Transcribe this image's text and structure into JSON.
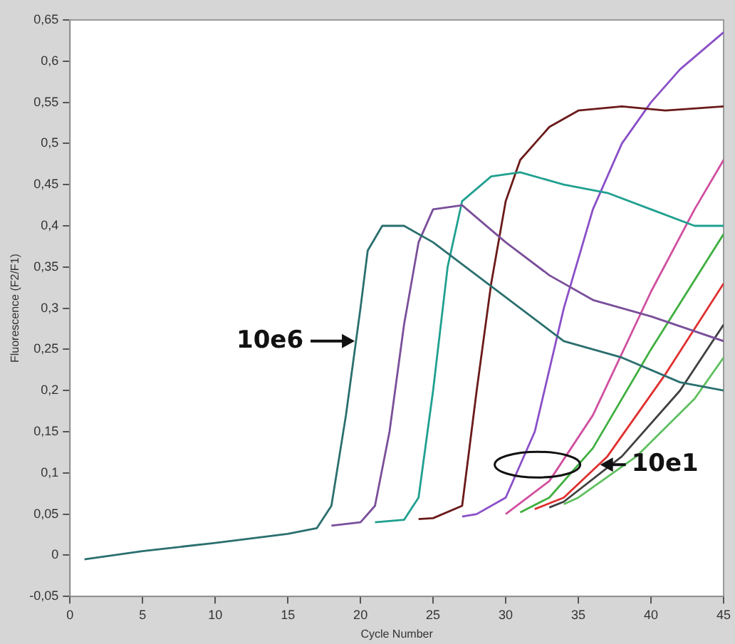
{
  "chart_data": {
    "type": "line",
    "xlabel": "Cycle Number",
    "ylabel": "Fluorescence (F2/F1)",
    "marker": "none",
    "legend": false,
    "grid": false,
    "xlim": [
      0,
      45
    ],
    "xticks": [
      0,
      5,
      10,
      15,
      20,
      25,
      30,
      35,
      40,
      45
    ],
    "ylim": [
      -0.05,
      0.65
    ],
    "yticks": [
      {
        "value": -0.05,
        "label": "-0,05"
      },
      0,
      {
        "value": 0.05,
        "label": "0,05"
      },
      {
        "value": 0.1,
        "label": "0,1"
      },
      {
        "value": 0.15,
        "label": "0,15"
      },
      {
        "value": 0.2,
        "label": "0,2"
      },
      {
        "value": 0.25,
        "label": "0,25"
      },
      {
        "value": 0.3,
        "label": "0,3"
      },
      {
        "value": 0.35,
        "label": "0,35"
      },
      {
        "value": 0.4,
        "label": "0,4"
      },
      {
        "value": 0.45,
        "label": "0,45"
      },
      {
        "value": 0.5,
        "label": "0,5"
      },
      {
        "value": 0.55,
        "label": "0,55"
      },
      {
        "value": 0.6,
        "label": "0,6"
      },
      {
        "value": 0.65,
        "label": "0,65"
      }
    ],
    "annotations": [
      {
        "text": "10e6",
        "x": 19.8,
        "y": 0.26
      },
      {
        "text": "10e1",
        "x": 36.5,
        "y": 0.11
      }
    ],
    "series": [
      {
        "color": "#2b6f6f",
        "x": [
          1,
          5,
          10,
          15,
          17,
          18,
          19,
          20,
          20.5,
          21.5,
          23,
          25,
          28,
          31,
          34,
          38,
          42,
          45
        ],
        "values": [
          -0.005,
          0.005,
          0.015,
          0.026,
          0.033,
          0.06,
          0.17,
          0.3,
          0.37,
          0.4,
          0.4,
          0.38,
          0.34,
          0.3,
          0.26,
          0.24,
          0.21,
          0.2
        ]
      },
      {
        "color": "#7a4f9a",
        "x": [
          18,
          20,
          21,
          22,
          23,
          24,
          25,
          27,
          30,
          33,
          36,
          40,
          45
        ],
        "values": [
          0.036,
          0.04,
          0.06,
          0.15,
          0.28,
          0.38,
          0.42,
          0.425,
          0.38,
          0.34,
          0.31,
          0.29,
          0.26
        ]
      },
      {
        "color": "#20a090",
        "x": [
          21,
          23,
          24,
          25,
          26,
          27,
          29,
          31,
          34,
          37,
          40,
          43,
          45
        ],
        "values": [
          0.04,
          0.043,
          0.07,
          0.2,
          0.35,
          0.43,
          0.46,
          0.465,
          0.45,
          0.44,
          0.42,
          0.4,
          0.4
        ]
      },
      {
        "color": "#6b1a1a",
        "x": [
          24,
          25,
          27,
          28,
          29,
          30,
          31,
          33,
          35,
          38,
          41,
          45
        ],
        "values": [
          0.044,
          0.045,
          0.06,
          0.2,
          0.33,
          0.43,
          0.48,
          0.52,
          0.54,
          0.545,
          0.54,
          0.545
        ]
      },
      {
        "color": "#8a4fc8",
        "x": [
          27,
          28,
          30,
          32,
          34,
          36,
          38,
          40,
          42,
          45
        ],
        "values": [
          0.047,
          0.05,
          0.07,
          0.15,
          0.3,
          0.42,
          0.5,
          0.55,
          0.59,
          0.635
        ]
      },
      {
        "color": "#d050a0",
        "x": [
          30,
          33,
          36,
          40,
          43,
          45
        ],
        "values": [
          0.05,
          0.09,
          0.17,
          0.32,
          0.42,
          0.48
        ]
      },
      {
        "color": "#40b040",
        "x": [
          31,
          33,
          36,
          40,
          45
        ],
        "values": [
          0.052,
          0.07,
          0.13,
          0.25,
          0.39
        ]
      },
      {
        "color": "#e03030",
        "x": [
          32,
          34,
          37,
          41,
          45
        ],
        "values": [
          0.056,
          0.07,
          0.12,
          0.22,
          0.33
        ]
      },
      {
        "color": "#404040",
        "x": [
          33,
          34,
          38,
          42,
          45
        ],
        "values": [
          0.058,
          0.065,
          0.12,
          0.2,
          0.28
        ]
      },
      {
        "color": "#60c060",
        "x": [
          34,
          35,
          39,
          43,
          45
        ],
        "values": [
          0.062,
          0.07,
          0.12,
          0.19,
          0.24
        ]
      }
    ]
  }
}
